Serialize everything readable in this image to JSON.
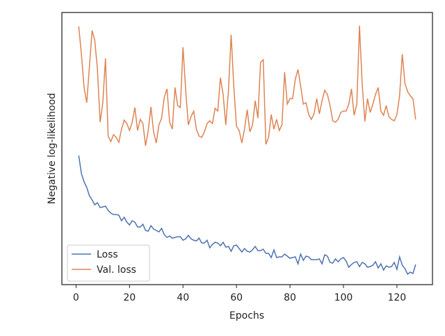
{
  "chart_data": {
    "type": "line",
    "xlabel": "Epochs",
    "ylabel": "Negative log-likelihood",
    "x": [
      1,
      2,
      3,
      4,
      5,
      6,
      7,
      8,
      9,
      10,
      11,
      12,
      13,
      14,
      15,
      16,
      17,
      18,
      19,
      20,
      21,
      22,
      23,
      24,
      25,
      26,
      27,
      28,
      29,
      30,
      31,
      32,
      33,
      34,
      35,
      36,
      37,
      38,
      39,
      40,
      41,
      42,
      43,
      44,
      45,
      46,
      47,
      48,
      49,
      50,
      51,
      52,
      53,
      54,
      55,
      56,
      57,
      58,
      59,
      60,
      61,
      62,
      63,
      64,
      65,
      66,
      67,
      68,
      69,
      70,
      71,
      72,
      73,
      74,
      75,
      76,
      77,
      78,
      79,
      80,
      81,
      82,
      83,
      84,
      85,
      86,
      87,
      88,
      89,
      90,
      91,
      92,
      93,
      94,
      95,
      96,
      97,
      98,
      99,
      100,
      101,
      102,
      103,
      104,
      105,
      106,
      107,
      108,
      109,
      110,
      111,
      112,
      113,
      114,
      115,
      116,
      117,
      118,
      119,
      120,
      121,
      122,
      123,
      124,
      125,
      126,
      127
    ],
    "series": [
      {
        "name": "Loss",
        "color": "#4c72b0",
        "values": [
          186,
          160,
          148,
          140,
          128,
          122,
          115,
          118,
          111,
          112,
          113,
          107,
          103,
          101,
          101,
          100,
          92,
          97,
          90,
          86,
          92,
          90,
          83,
          83,
          87,
          78,
          77,
          85,
          80,
          78,
          76,
          81,
          72,
          68,
          70,
          67,
          68,
          69,
          69,
          64,
          66,
          71,
          66,
          64,
          63,
          67,
          60,
          60,
          64,
          53,
          58,
          61,
          60,
          56,
          61,
          54,
          55,
          48,
          56,
          57,
          52,
          47,
          52,
          48,
          47,
          50,
          55,
          49,
          49,
          51,
          45,
          45,
          39,
          50,
          39,
          40,
          40,
          44,
          41,
          38,
          39,
          40,
          30,
          44,
          35,
          41,
          40,
          36,
          36,
          36,
          37,
          30,
          43,
          41,
          32,
          31,
          37,
          33,
          37,
          39,
          34,
          25,
          29,
          32,
          33,
          26,
          32,
          30,
          25,
          26,
          28,
          33,
          24,
          30,
          21,
          27,
          25,
          26,
          32,
          22,
          40,
          28,
          23,
          15,
          18,
          16,
          29
        ]
      },
      {
        "name": "Val. loss",
        "color": "#dd8452",
        "values": [
          372,
          332,
          284,
          262,
          314,
          366,
          352,
          310,
          234,
          262,
          326,
          214,
          206,
          216,
          212,
          205,
          224,
          237,
          232,
          222,
          234,
          255,
          222,
          238,
          232,
          200,
          222,
          256,
          220,
          204,
          230,
          240,
          270,
          282,
          234,
          224,
          284,
          258,
          255,
          342,
          280,
          230,
          242,
          250,
          224,
          214,
          212,
          220,
          232,
          236,
          232,
          254,
          250,
          298,
          274,
          230,
          280,
          360,
          285,
          228,
          222,
          204,
          224,
          252,
          220,
          230,
          265,
          240,
          320,
          324,
          202,
          212,
          245,
          224,
          238,
          222,
          230,
          306,
          260,
          268,
          268,
          296,
          310,
          286,
          260,
          262,
          245,
          238,
          246,
          268,
          246,
          265,
          280,
          274,
          258,
          236,
          234,
          238,
          248,
          250,
          250,
          260,
          282,
          244,
          260,
          373,
          290,
          235,
          268,
          248,
          260,
          274,
          284,
          250,
          244,
          258,
          242,
          238,
          236,
          245,
          272,
          332,
          290,
          278,
          272,
          268,
          238
        ]
      }
    ],
    "xlim": [
      -5.3,
      133.3
    ],
    "xticks": [
      0,
      20,
      40,
      60,
      80,
      100,
      120
    ],
    "ylim": [
      0,
      392
    ],
    "legend": "lower left"
  }
}
